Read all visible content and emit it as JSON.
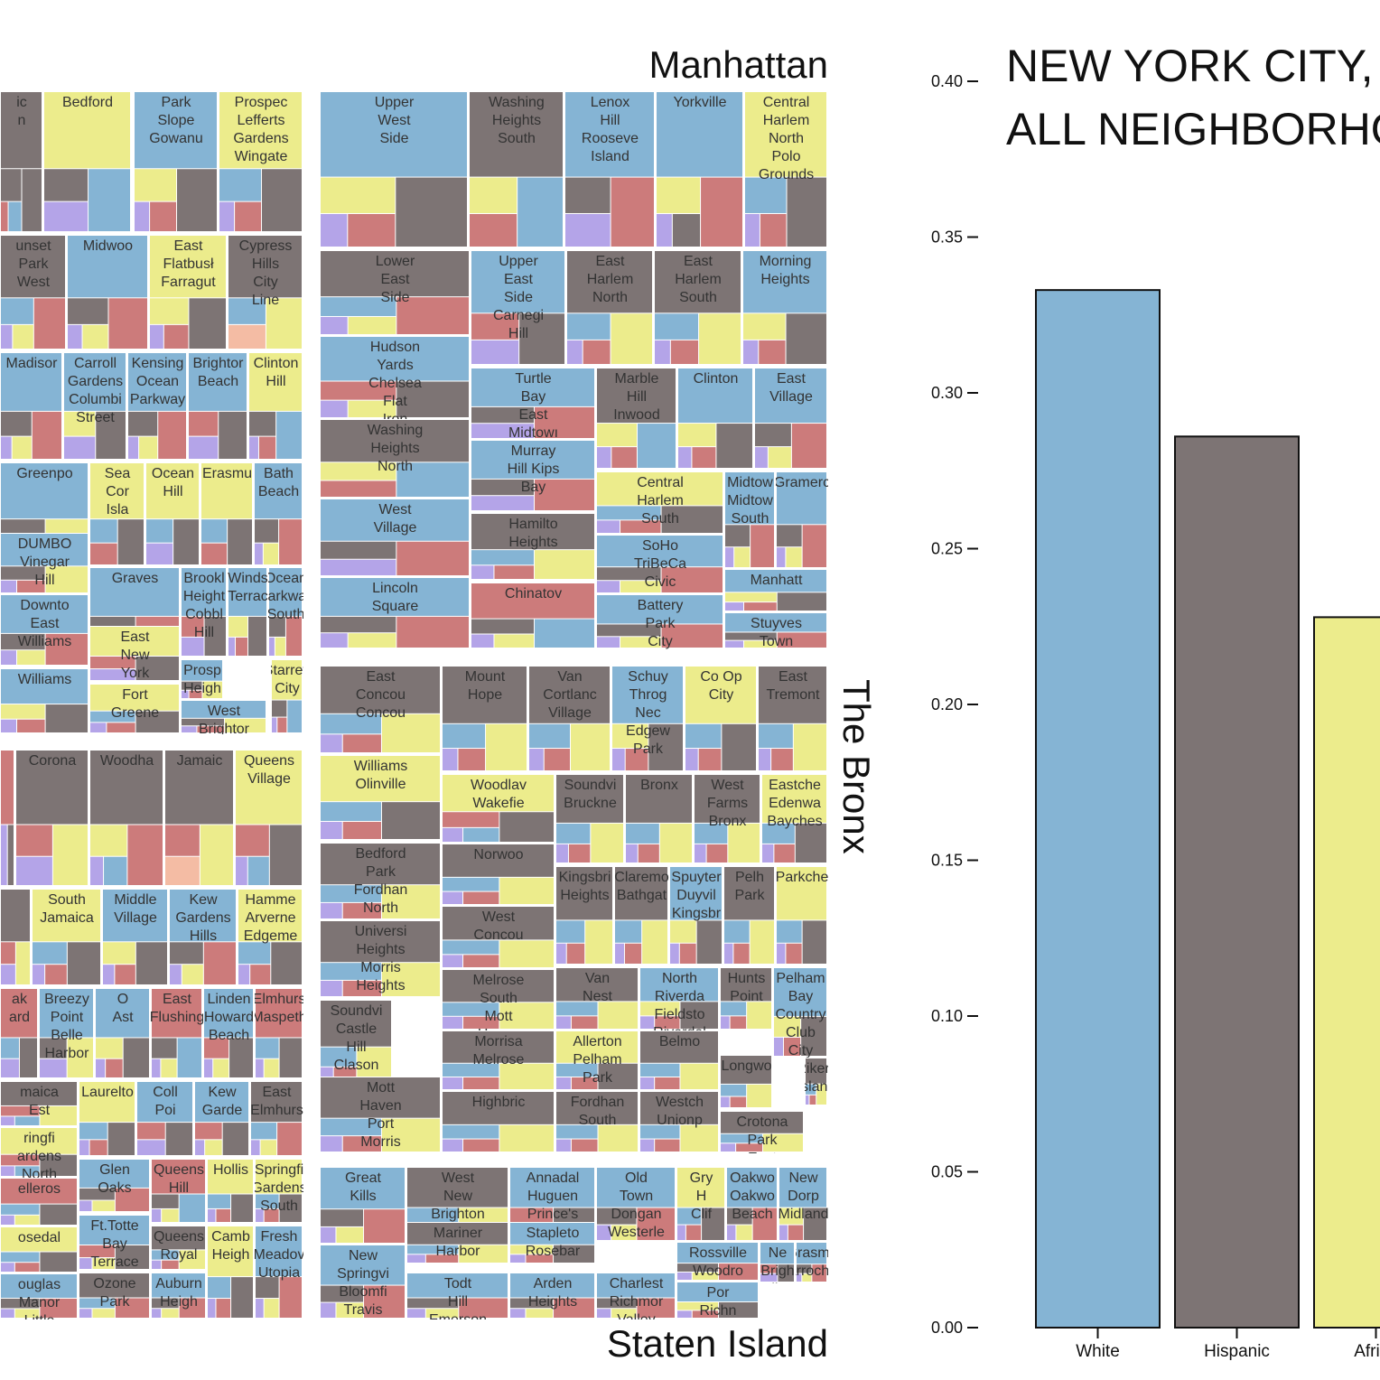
{
  "colors": {
    "White": "#85b4d4",
    "Hispanic": "#7d7474",
    "African American": "#ecec8c",
    "Asian": "#cc7b7b",
    "Other": "#b4a4e8",
    "Multi": "#f4bca4"
  },
  "title_lines": [
    "NEW YORK CITY,",
    "ALL NEIGHBORHO"
  ],
  "boroughs": {
    "manhattan": "Manhattan",
    "bronx": "The Bronx",
    "staten_island": "Staten Island"
  },
  "chart_data": {
    "type": "bar",
    "title": "NEW YORK CITY, ALL NEIGHBORHO",
    "categories": [
      "White",
      "Hispanic",
      "Africa"
    ],
    "category_colors": [
      "#85b4d4",
      "#7d7474",
      "#ecec8c"
    ],
    "values": [
      0.333,
      0.286,
      0.228
    ],
    "yticks": [
      "0.00",
      "0.05",
      "0.10",
      "0.15",
      "0.20",
      "0.25",
      "0.30",
      "0.35",
      "0.40"
    ],
    "ylim": [
      0,
      0.4
    ],
    "xlabel": "",
    "ylabel": ""
  },
  "neighborhoods": {
    "brooklyn": [
      {
        "label": "ic\nn",
        "seq": "HHHWA"
      },
      {
        "label": "Bedford",
        "seq": "BWHO"
      },
      {
        "label": "Park\nSlope\nGowanu",
        "seq": "WHBAO"
      },
      {
        "label": "Prospec\nLefferts\nGardens\nWingate",
        "seq": "BHWAO"
      },
      {
        "label": "unset\nPark\nWest",
        "seq": "HAWBO"
      },
      {
        "label": "Midwoo",
        "seq": "WAHBO"
      },
      {
        "label": "East\nFlatbusł\nFarragut",
        "seq": "BHBAO"
      },
      {
        "label": "Cypress\nHills\nCity\nLine",
        "seq": "HBWM"
      },
      {
        "label": "Madisor",
        "seq": "WAHBO"
      },
      {
        "label": "Carroll\nGardens\nColumbi\nStreet",
        "seq": "WHBO"
      },
      {
        "label": "Kensing\nOcean\nParkway",
        "seq": "WAHBO"
      },
      {
        "label": "Brightor\nBeach",
        "seq": "WHAO"
      },
      {
        "label": "Clinton\nHill",
        "seq": "BWHAO"
      },
      {
        "label": "Greenpo",
        "seq": "WBHAO"
      },
      {
        "label": "Sea\nCor\nIsla",
        "seq": "BHWA"
      },
      {
        "label": "Ocean\nHill",
        "seq": "BHWO"
      },
      {
        "label": "Erasmu",
        "seq": "BHWA"
      },
      {
        "label": "Bath\nBeach",
        "seq": "WAHBO"
      },
      {
        "label": "DUMBO\nVinegar\nHill",
        "seq": "WBHAO"
      },
      {
        "label": "Graves",
        "seq": "WAHBO"
      },
      {
        "label": "Brookl\nHeight\nCobbl\nHill",
        "seq": "WHAO"
      },
      {
        "label": "Winds\nTerrac",
        "seq": "WHBAO"
      },
      {
        "label": "Ocean\nParkway\nSouth",
        "seq": "WAHBO"
      },
      {
        "label": "Downto\nEast\nWilliams",
        "seq": "WAHBO"
      },
      {
        "label": "East\nNew\nYork",
        "seq": "BHAO"
      },
      {
        "label": "Williams",
        "seq": "WHBAO"
      },
      {
        "label": "Fort\nGreene",
        "seq": "BHWAO"
      },
      {
        "label": "Prosp\nHeigh",
        "seq": "WBHAO"
      },
      {
        "label": "West\nBrightor",
        "seq": "WBHAO"
      },
      {
        "label": "Starrett\nCity",
        "seq": "BWHAO"
      }
    ],
    "manhattan": [
      {
        "label": "Upper\nWest\nSide",
        "seq": "WHBAO"
      },
      {
        "label": "Washing\nHeights\nSouth",
        "seq": "HWBA"
      },
      {
        "label": "Lenox\nHill\nRooseve\nIsland",
        "seq": "WAHO"
      },
      {
        "label": "Yorkville",
        "seq": "WABHO"
      },
      {
        "label": "Central\nHarlem\nNorth\nPolo\nGrounds",
        "seq": "BHWAO"
      },
      {
        "label": "Lower\nEast\nSide",
        "seq": "HAWBO"
      },
      {
        "label": "Upper\nEast\nSide\nCarnegi\nHill",
        "seq": "WHAO"
      },
      {
        "label": "East\nHarlem\nNorth",
        "seq": "HBWAO"
      },
      {
        "label": "East\nHarlem\nSouth",
        "seq": "HBWAO"
      },
      {
        "label": "Morning\nHeights",
        "seq": "WHBAO"
      },
      {
        "label": "Hudson\nYards\nChelsea\nFlat\nIron",
        "seq": "WHABO"
      },
      {
        "label": "Turtle\nBay\nEast\nMidtowı",
        "seq": "WAHO"
      },
      {
        "label": "Marble\nHill\nInwood",
        "seq": "HWBAO"
      },
      {
        "label": "Clinton",
        "seq": "WHBAO"
      },
      {
        "label": "East\nVillage",
        "seq": "WAHBO"
      },
      {
        "label": "Washing\nHeights\nNorth",
        "seq": "HWBA"
      },
      {
        "label": "Murray\nHill Kips\nBay",
        "seq": "WAHO"
      },
      {
        "label": "Central\nHarlem\nSouth",
        "seq": "BHWAO"
      },
      {
        "label": "Midtow\nMidtow\nSouth",
        "seq": "WAHBO"
      },
      {
        "label": "Gramerc",
        "seq": "WAHBO"
      },
      {
        "label": "West\nVillage",
        "seq": "WAHO"
      },
      {
        "label": "Hamilto\nHeights",
        "seq": "HBWAO"
      },
      {
        "label": "SoHo\nTriBeCa\nCivic\nCenter",
        "seq": "WAHBO"
      },
      {
        "label": "Manhatt",
        "seq": "WHBAO"
      },
      {
        "label": "Lincoln\nSquare",
        "seq": "WAHBO"
      },
      {
        "label": "Chinatov",
        "seq": "AWHBO"
      },
      {
        "label": "Battery\nPark\nCity\nLower",
        "seq": "WAHBO"
      },
      {
        "label": "Stuyves\nTown\nCooper",
        "seq": "WAHBO"
      }
    ],
    "queens": [
      {
        "label": "",
        "seq": "AHO"
      },
      {
        "label": "Corona",
        "seq": "HBAO"
      },
      {
        "label": "Woodha",
        "seq": "HABWO"
      },
      {
        "label": "Jamaic",
        "seq": "HBAM"
      },
      {
        "label": "Queens\nVillage",
        "seq": "BHAWO"
      },
      {
        "label": "",
        "seq": "HBAO"
      },
      {
        "label": "South\nJamaica",
        "seq": "BHWAO"
      },
      {
        "label": "Middle\nVillage",
        "seq": "WHBAO"
      },
      {
        "label": "Kew\nGardens\nHills",
        "seq": "WAHBO"
      },
      {
        "label": "Hamme\nArverne\nEdgeme",
        "seq": "BHWAO"
      },
      {
        "label": "ak\nard",
        "seq": "AHWO"
      },
      {
        "label": "Breezy\nPoint\nBelle\nHarbor",
        "seq": "WBHO"
      },
      {
        "label": "O\nAst",
        "seq": "WHBAO"
      },
      {
        "label": "East\nFlushing",
        "seq": "AWHBO"
      },
      {
        "label": "Linden\nHoward\nBeach",
        "seq": "WHABO"
      },
      {
        "label": "Elmhurs\nMaspeth",
        "seq": "AHWBO"
      },
      {
        "label": "maica\nEst",
        "seq": "HBAWO"
      },
      {
        "label": "Laurelto",
        "seq": "BHWAO"
      },
      {
        "label": "Coll\nPoi",
        "seq": "WHAO"
      },
      {
        "label": "Kew\nGarde",
        "seq": "WHABO"
      },
      {
        "label": "East\nElmhurs",
        "seq": "HAWBO"
      },
      {
        "label": "ringfi\nardens\nNorth",
        "seq": "BHAWO"
      },
      {
        "label": "Glen\nOaks",
        "seq": "WAHBO"
      },
      {
        "label": "Queens\nHill",
        "seq": "AWHBO"
      },
      {
        "label": "Hollis",
        "seq": "BHWAO"
      },
      {
        "label": "Springfi\nGardens\nSouth",
        "seq": "BHWAO"
      },
      {
        "label": "elleros",
        "seq": "AHWBO"
      },
      {
        "label": "Ft.Totte\nBay\nTerrace",
        "seq": "WHABO"
      },
      {
        "label": "Queens\nRoyal",
        "seq": "HBWAO"
      },
      {
        "label": "Camb\nHeigh",
        "seq": "BHWAO"
      },
      {
        "label": "Fresh\nMeadov\nUtopia",
        "seq": "WAHBO"
      },
      {
        "label": "osedal",
        "seq": "BHWAO"
      },
      {
        "label": "Ozone\nPark",
        "seq": "HAWBO"
      },
      {
        "label": "Auburn\nHeigh",
        "seq": "WAHBO"
      },
      {
        "label": "ouglas\nManor\nLittle\nNeck",
        "seq": "WAHBO"
      }
    ],
    "bronx": [
      {
        "label": "East\nConcou\nConcou",
        "seq": "HBWAO"
      },
      {
        "label": "Mount\nHope",
        "seq": "HBWAO"
      },
      {
        "label": "Van\nCortlanc\nVillage",
        "seq": "HBWAO"
      },
      {
        "label": "Schuy\nThrog\nNec\nEdgew\nPark",
        "seq": "WHBAO"
      },
      {
        "label": "Co Op\nCity",
        "seq": "BHWAO"
      },
      {
        "label": "East\nTremont",
        "seq": "HBWAO"
      },
      {
        "label": "Williams\nOlinville",
        "seq": "BHWAO"
      },
      {
        "label": "Woodlav\nWakefie",
        "seq": "BHAWO"
      },
      {
        "label": "Soundvi\nBruckne",
        "seq": "HBWAO"
      },
      {
        "label": "Bronx",
        "seq": "HBWAO"
      },
      {
        "label": "West\nFarms\nBronx",
        "seq": "HBWAO"
      },
      {
        "label": "Eastche\nEdenwa\nBayches",
        "seq": "BHWAO"
      },
      {
        "label": "Bedford\nPark\nFordhan\nNorth",
        "seq": "HBWAO"
      },
      {
        "label": "Norwoo",
        "seq": "HBWAO"
      },
      {
        "label": "Kingsbri\nHeights",
        "seq": "HBWAO"
      },
      {
        "label": "Claremo\nBathgat",
        "seq": "HBWAO"
      },
      {
        "label": "Spuyter\nDuyvil\nKingsbr",
        "seq": "WHBAO"
      },
      {
        "label": "Pelh\nPark",
        "seq": "HBWAO"
      },
      {
        "label": "Parkche",
        "seq": "BHWAO"
      },
      {
        "label": "Universi\nHeights\nMorris\nHeights",
        "seq": "HBWAO"
      },
      {
        "label": "West\nConcou",
        "seq": "HBWAO"
      },
      {
        "label": "Van\nNest",
        "seq": "HBWAO"
      },
      {
        "label": "North\nRiverda\nFieldsto\nRiverdal",
        "seq": "WHBAO"
      },
      {
        "label": "Hunts\nPoint",
        "seq": "HBWAO"
      },
      {
        "label": "Pelham\nBay\nCountry\nClub\nCity",
        "seq": "WHBAO"
      },
      {
        "label": "Soundvi\nCastle\nHill\nClason\nPoint",
        "seq": "HBWAO"
      },
      {
        "label": "Melrose\nSouth\nMott\nHaven",
        "seq": "HBWAO"
      },
      {
        "label": "Morrisa\nMelrose",
        "seq": "HBWAO"
      },
      {
        "label": "Allerton\nPelham\nPark",
        "seq": "BHWAO"
      },
      {
        "label": "Belmo",
        "seq": "HBWAO"
      },
      {
        "label": "Longwo",
        "seq": "HBWAO"
      },
      {
        "label": "Rikers\nIsland",
        "seq": "HBWAO"
      },
      {
        "label": "Mott\nHaven\nPort\nMorris",
        "seq": "HBWAO"
      },
      {
        "label": "Highbric",
        "seq": "HBWAO"
      },
      {
        "label": "Fordhan\nSouth",
        "seq": "HBWAO"
      },
      {
        "label": "Westch\nUnionp",
        "seq": "HBWAO"
      },
      {
        "label": "Crotona\nPark\nEast",
        "seq": "HBWAO"
      }
    ],
    "staten": [
      {
        "label": "Great\nKills",
        "seq": "WAHBO"
      },
      {
        "label": "West\nNew\nBrighton",
        "seq": "HBWAO"
      },
      {
        "label": "Annadal\nHuguen\nPrince's\nBay",
        "seq": "WHABO"
      },
      {
        "label": "Old\nTown\nDongan\nWesterle",
        "seq": "WAHBO"
      },
      {
        "label": "Gry\nH\nClif",
        "seq": "BHWAO"
      },
      {
        "label": "Oakwo\nOakwo\nBeach",
        "seq": "WAHBO"
      },
      {
        "label": "New\nDorp\nMidland",
        "seq": "WHBAO"
      },
      {
        "label": "Mariner\nHarbor",
        "seq": "HBWAO"
      },
      {
        "label": "Stapleto\nRosebar",
        "seq": "WHBAO"
      },
      {
        "label": "Rossville\nWoodro",
        "seq": "WAHBO"
      },
      {
        "label": "Ne\nBrigh\nSilve",
        "seq": "WHAO"
      },
      {
        "label": "Grasme\nArrocha\nFt.Wads",
        "seq": "WAHBO"
      },
      {
        "label": "New\nSpringvi\nBloomfi\nTravis",
        "seq": "WAHBO"
      },
      {
        "label": "Todt\nHill\nEmerson\nHill\nHeartlar\nVillg",
        "seq": "WAHBO"
      },
      {
        "label": "Arden\nHeights",
        "seq": "WAHBO"
      },
      {
        "label": "Charlest\nRichmor\nValley\nTottevi",
        "seq": "WAHBO"
      },
      {
        "label": "Por\nRichn",
        "seq": "WHBAO"
      }
    ]
  }
}
